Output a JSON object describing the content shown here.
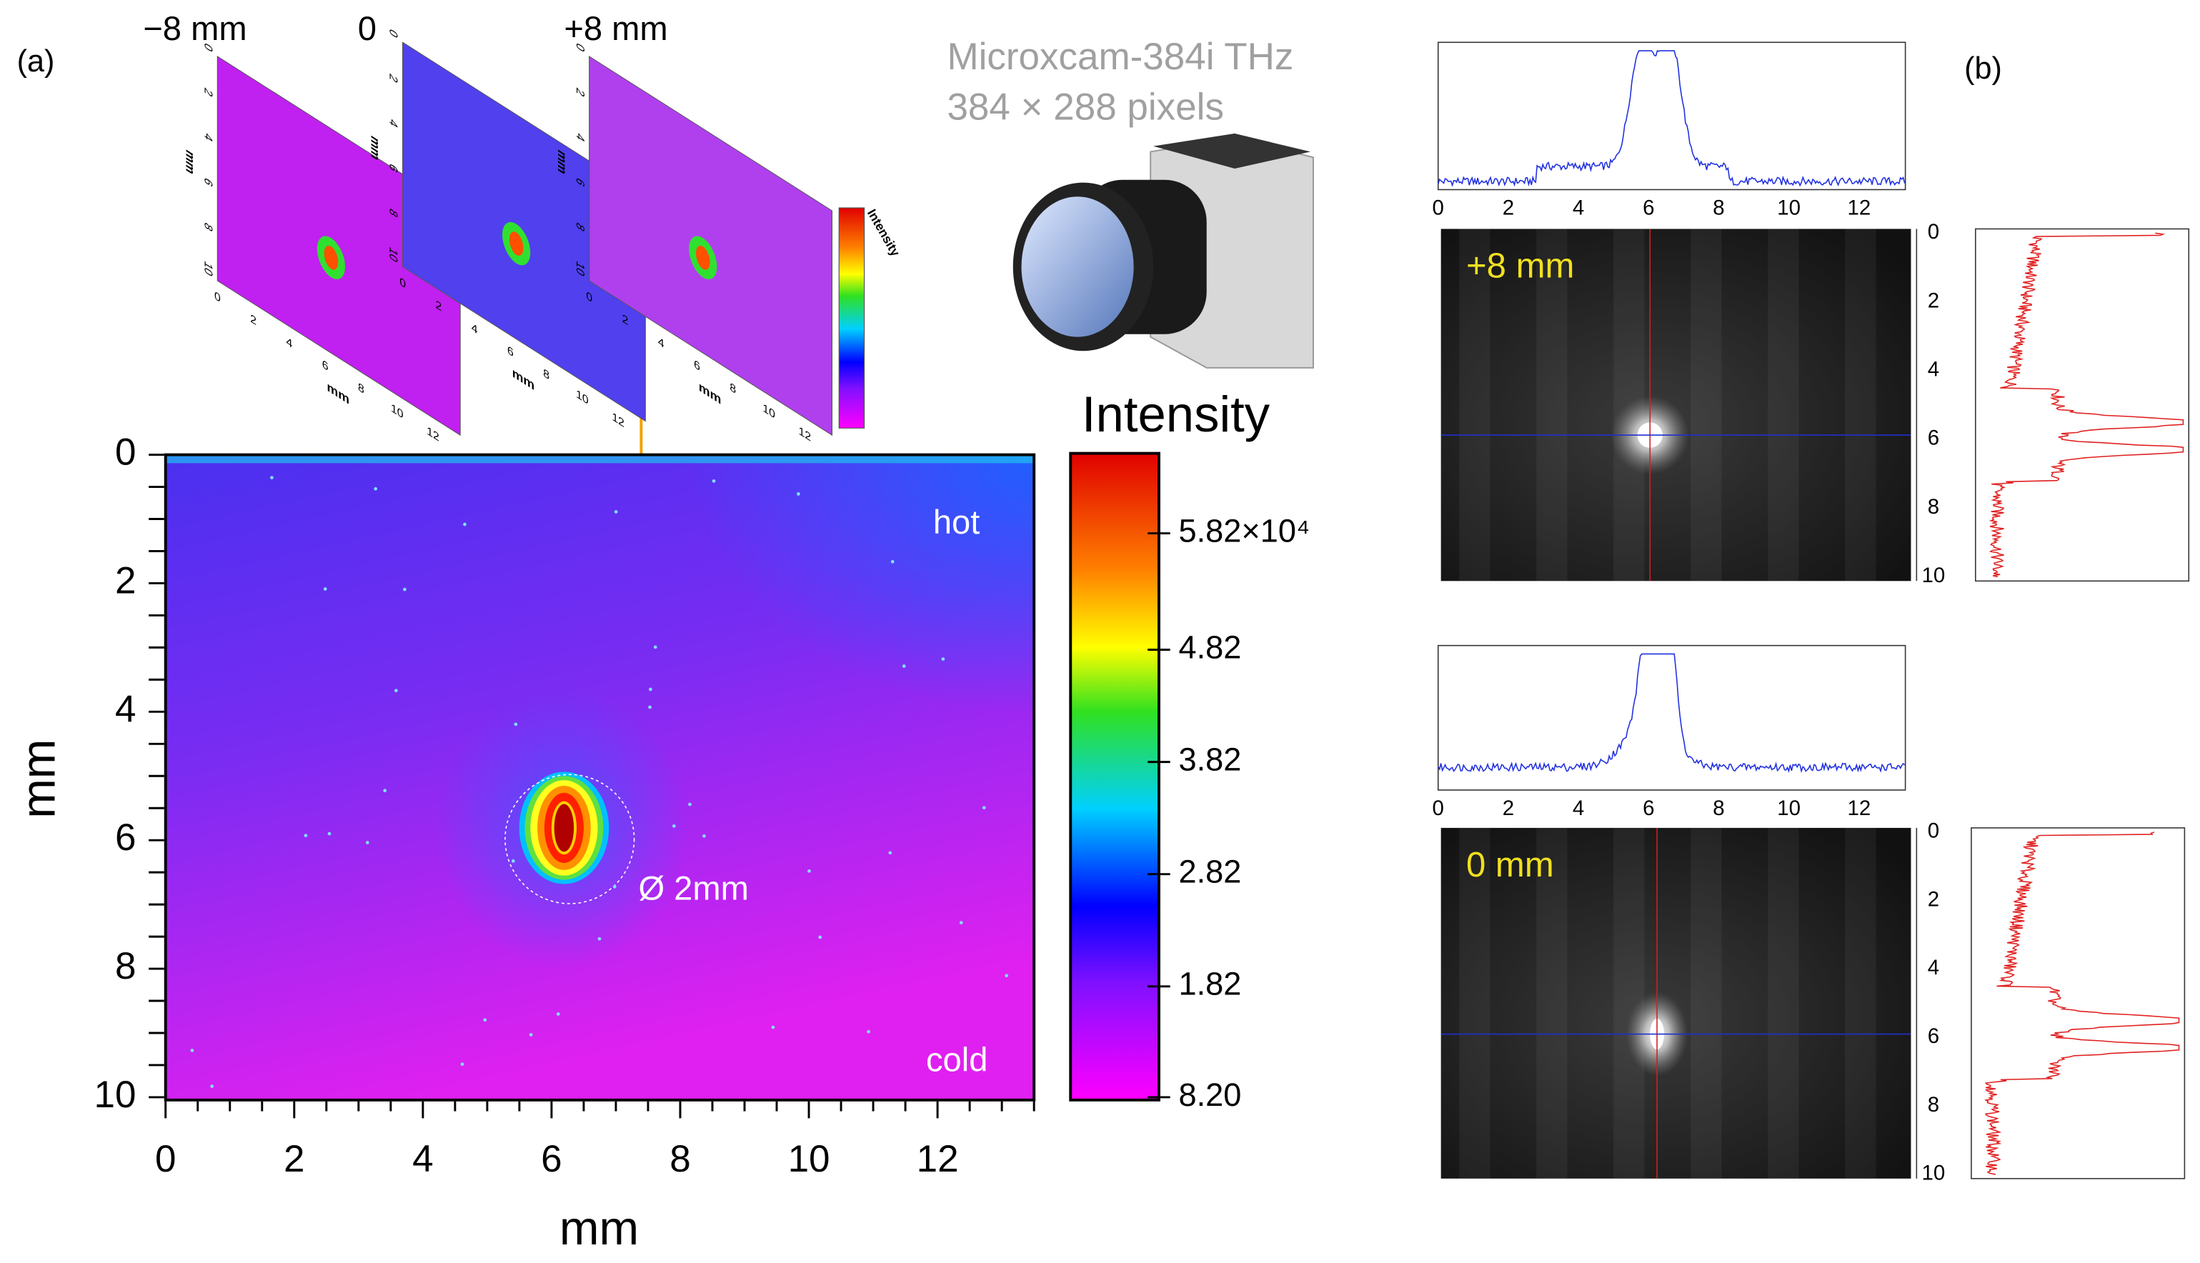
{
  "panel_a": {
    "label": "(a)",
    "insets": [
      {
        "label": "−8 mm"
      },
      {
        "label": "0"
      },
      {
        "label": "+8 mm"
      }
    ],
    "inset_axes": {
      "label": "mm",
      "x_ticks": [
        "0",
        "2",
        "4",
        "6",
        "8",
        "10",
        "12"
      ],
      "y_ticks": [
        "0",
        "2",
        "4",
        "6",
        "8",
        "10"
      ],
      "colorbar_title": "Intensity"
    },
    "camera": {
      "model": "Microxcam-384i THz",
      "resolution": "384 × 288 pixels"
    },
    "map": {
      "x_label": "mm",
      "y_label": "mm",
      "x_ticks": [
        "0",
        "2",
        "4",
        "6",
        "8",
        "10",
        "12"
      ],
      "y_ticks": [
        "0",
        "2",
        "4",
        "6",
        "8",
        "10"
      ],
      "annotations": {
        "hot": "hot",
        "cold": "cold",
        "spot": "Ø 2mm"
      }
    },
    "colorbar": {
      "title": "Intensity",
      "ticks": [
        "5.82×10⁴",
        "4.82",
        "3.82",
        "2.82",
        "1.82",
        "8.20"
      ]
    }
  },
  "panel_b": {
    "label": "(b)",
    "images": [
      {
        "label": "+8 mm",
        "x_ticks": [
          "0",
          "2",
          "4",
          "6",
          "8",
          "10",
          "12"
        ],
        "y_ticks": [
          "0",
          "2",
          "4",
          "6",
          "8",
          "10"
        ]
      },
      {
        "label": "0 mm",
        "x_ticks": [
          "0",
          "2",
          "4",
          "6",
          "8",
          "10",
          "12"
        ],
        "y_ticks": [
          "0",
          "2",
          "4",
          "6",
          "8",
          "10"
        ]
      }
    ]
  }
}
